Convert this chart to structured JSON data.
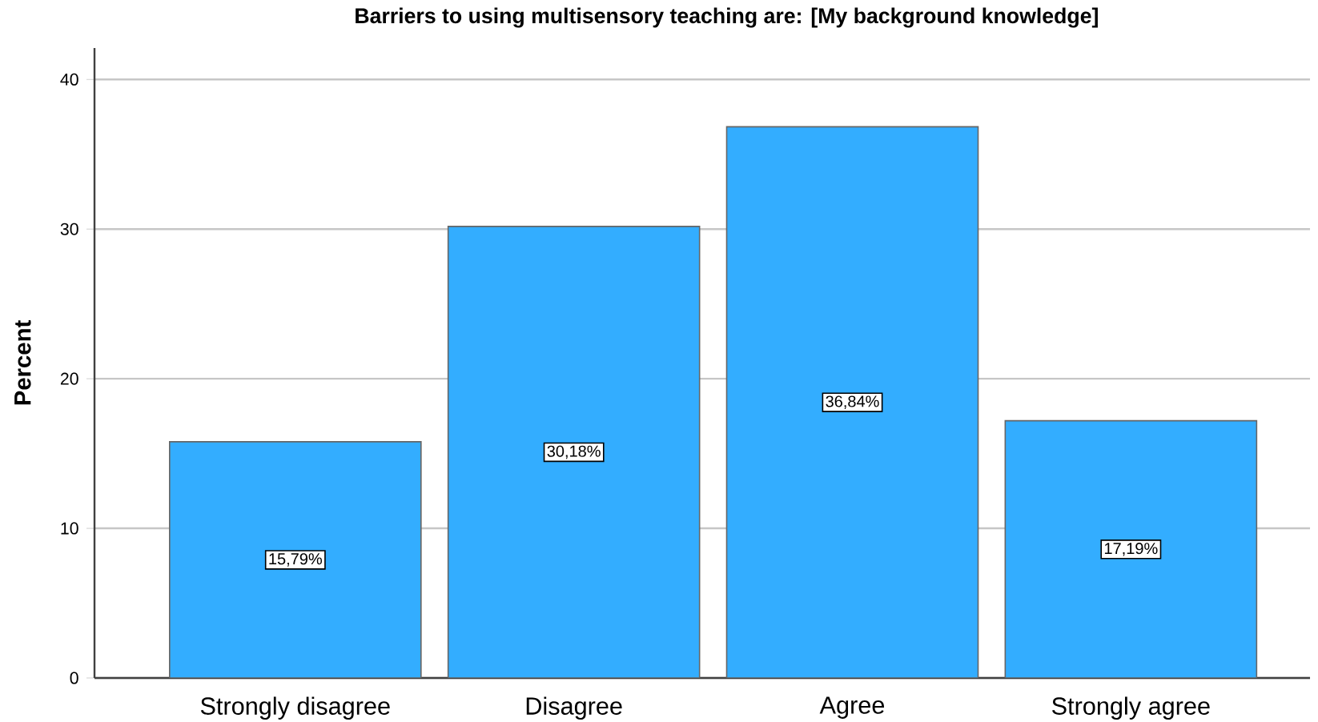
{
  "chart_data": {
    "type": "bar",
    "title": "Barriers to using multisensory teaching are: [My background knowledge]",
    "categories": [
      "Strongly disagree",
      "Disagree",
      "Agree",
      "Strongly agree"
    ],
    "values": [
      15.79,
      30.18,
      36.84,
      17.19
    ],
    "value_labels": [
      "15,79%",
      "30,18%",
      "36,84%",
      "17,19%"
    ],
    "color": "#33adff",
    "ylabel": "Percent",
    "ylim": [
      0,
      42.1
    ],
    "yticks": [
      0,
      10,
      20,
      30,
      40
    ],
    "grid": "y"
  }
}
